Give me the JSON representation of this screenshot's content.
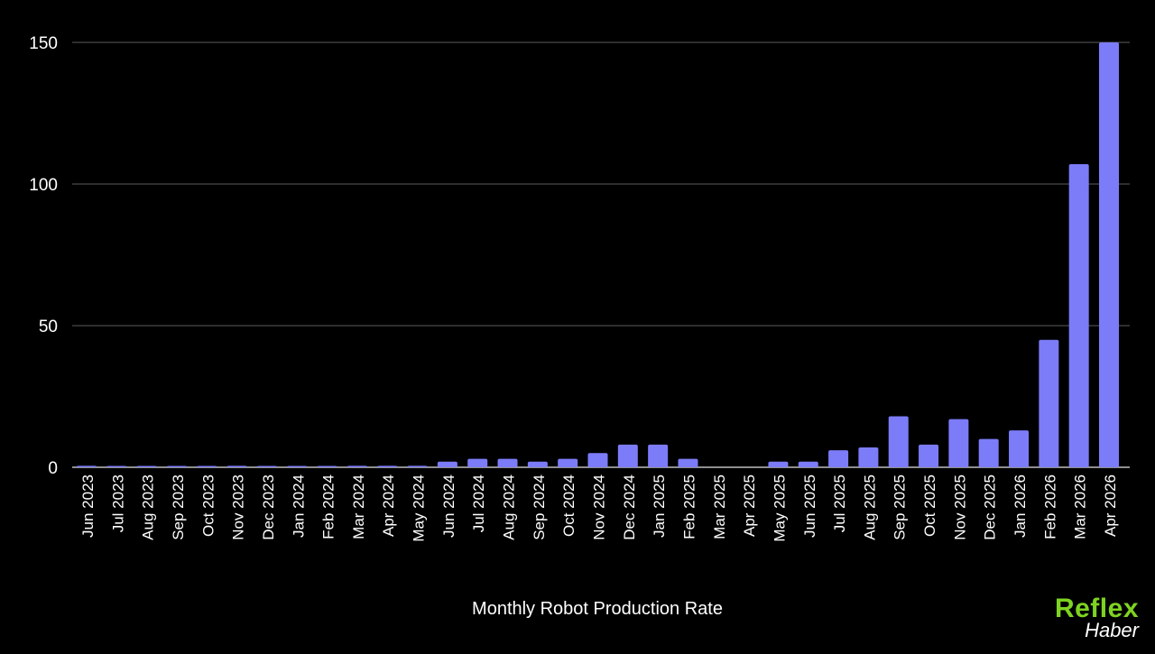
{
  "chart_data": {
    "type": "bar",
    "xlabel": "Monthly Robot Production Rate",
    "ylabel": "",
    "ylim": [
      0,
      150
    ],
    "yticks": [
      0,
      50,
      100,
      150
    ],
    "grid": true,
    "bar_color": "#7c7cf8",
    "background_color": "#000000",
    "categories": [
      "Jun 2023",
      "Jul 2023",
      "Aug 2023",
      "Sep 2023",
      "Oct 2023",
      "Nov 2023",
      "Dec 2023",
      "Jan 2024",
      "Feb 2024",
      "Mar 2024",
      "Apr 2024",
      "May 2024",
      "Jun 2024",
      "Jul 2024",
      "Aug 2024",
      "Sep 2024",
      "Oct 2024",
      "Nov 2024",
      "Dec 2024",
      "Jan 2025",
      "Feb 2025",
      "Mar 2025",
      "Apr 2025",
      "May 2025",
      "Jun 2025",
      "Jul 2025",
      "Aug 2025",
      "Sep 2025",
      "Oct 2025",
      "Nov 2025",
      "Dec 2025",
      "Jan 2026",
      "Feb 2026",
      "Mar 2026",
      "Apr 2026"
    ],
    "values": [
      0.5,
      0.2,
      0.2,
      0.2,
      0.2,
      0.5,
      0.2,
      0.2,
      0.2,
      0.5,
      0.5,
      0.5,
      2,
      3,
      3,
      2,
      3,
      5,
      8,
      8,
      3,
      0,
      0,
      2,
      2,
      6,
      7,
      18,
      8,
      17,
      10,
      13,
      45,
      107,
      150
    ]
  },
  "watermark": {
    "brand": "Reflex",
    "sub": "Haber",
    "brand_color": "#7ed321"
  }
}
